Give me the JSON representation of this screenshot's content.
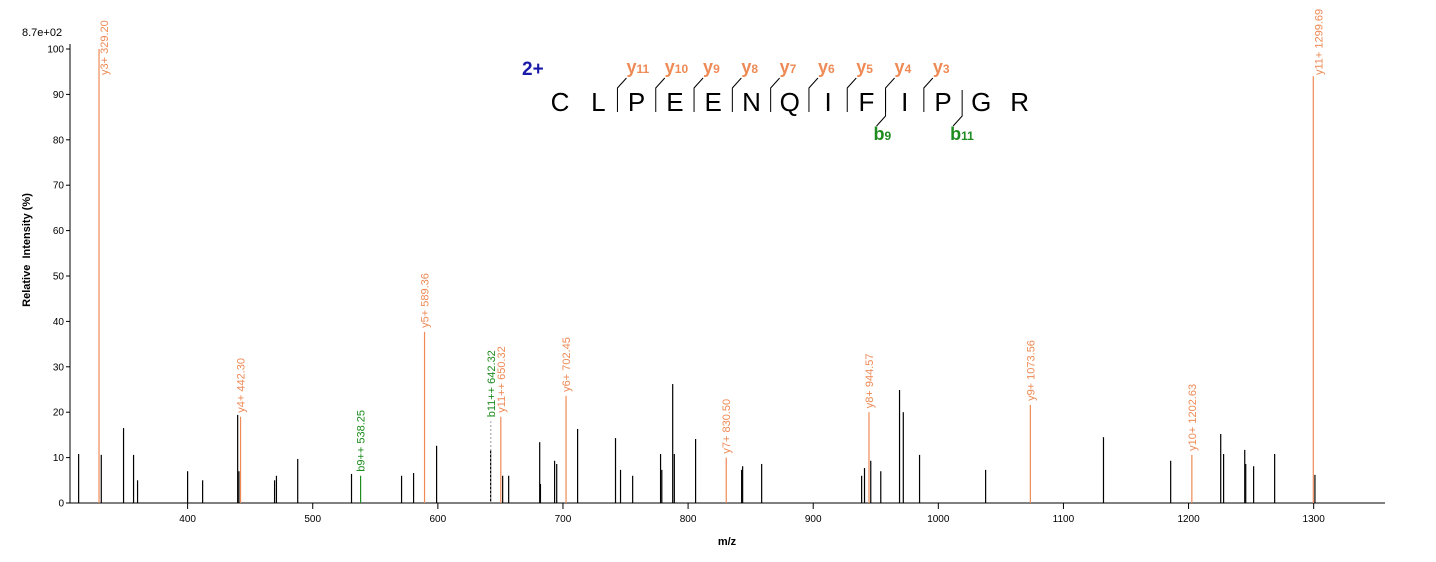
{
  "chart_data": {
    "type": "spectrum",
    "intensity_scale_label": "8.7e+02",
    "x_label": "m/z",
    "y_label": "Relative  Intensity (%)",
    "xlim": [
      306,
      1357
    ],
    "ylim": [
      0,
      100
    ],
    "xticks": [
      400,
      500,
      600,
      700,
      800,
      900,
      1000,
      1100,
      1200,
      1300
    ],
    "yticks": [
      0,
      10,
      20,
      30,
      40,
      50,
      60,
      70,
      80,
      90,
      100
    ],
    "peaks": {
      "color": "#000000",
      "mz": [
        312.9,
        331,
        348.8,
        356.8,
        360,
        400,
        412,
        440,
        441,
        469.5,
        471,
        488,
        531,
        571,
        580.6,
        599,
        642.2,
        651.8,
        656.6,
        681.4,
        682,
        693.3,
        695,
        711.7,
        742,
        746,
        755.7,
        778,
        779,
        787.7,
        789,
        806,
        842.8,
        843.6,
        858.8,
        938.7,
        941,
        946,
        954,
        969,
        972,
        985,
        1037.8,
        1132,
        1185.7,
        1225.7,
        1228,
        1244.9,
        1245.7,
        1252,
        1268.8,
        1301
      ],
      "intensity": [
        10.8,
        10.6,
        16.5,
        10.6,
        5,
        7,
        5,
        19.4,
        7,
        5,
        6,
        9.7,
        6.4,
        6,
        6.6,
        12.6,
        11.7,
        6,
        6,
        13.4,
        4.2,
        9.3,
        8.6,
        16.3,
        14.3,
        7.3,
        6,
        10.8,
        7.3,
        26.2,
        10.8,
        14.1,
        7.3,
        8.1,
        8.6,
        6,
        7.7,
        9.3,
        7,
        24.9,
        20,
        10.6,
        7.3,
        14.5,
        9.3,
        15.2,
        10.8,
        11.7,
        8.6,
        8.1,
        10.8,
        6.2
      ]
    },
    "annotations": [
      {
        "label": "y3+ 329.20",
        "mz": 329.2,
        "intensity": 100,
        "color": "#ee8a55"
      },
      {
        "label": "y4+ 442.30",
        "mz": 442.3,
        "intensity": 19,
        "color": "#ee8a55"
      },
      {
        "label": "b9++ 538.25",
        "mz": 538.25,
        "intensity": 6,
        "color": "#1e8c1e"
      },
      {
        "label": "y5+ 589.36",
        "mz": 589.36,
        "intensity": 37.7,
        "color": "#ee8a55"
      },
      {
        "label": "b11++ 642.32",
        "mz": 642.32,
        "intensity": 18,
        "color": "#1e8c1e",
        "line_style": "dashed"
      },
      {
        "label": "y11++ 650.32",
        "mz": 650.32,
        "intensity": 19,
        "color": "#ee8a55"
      },
      {
        "label": "y6+ 702.45",
        "mz": 702.45,
        "intensity": 23.6,
        "color": "#ee8a55"
      },
      {
        "label": "y7+ 830.50",
        "mz": 830.5,
        "intensity": 10,
        "color": "#ee8a55"
      },
      {
        "label": "y8+ 944.57",
        "mz": 944.57,
        "intensity": 20,
        "color": "#ee8a55"
      },
      {
        "label": "y9+ 1073.56",
        "mz": 1073.56,
        "intensity": 21.6,
        "color": "#ee8a55"
      },
      {
        "label": "y10+ 1202.63",
        "mz": 1202.63,
        "intensity": 10.6,
        "color": "#ee8a55"
      },
      {
        "label": "y11+ 1299.69",
        "mz": 1299.69,
        "intensity": 94,
        "color": "#ee8a55"
      }
    ]
  },
  "peptide": {
    "charge": "2+",
    "charge_color": "#1a1aa8",
    "residues": [
      "C",
      "L",
      "P",
      "E",
      "E",
      "N",
      "Q",
      "I",
      "F",
      "I",
      "P",
      "G",
      "R"
    ],
    "y_ion_letter": "y",
    "y_ions": [
      11,
      10,
      9,
      8,
      7,
      6,
      5,
      4,
      3
    ],
    "y_color": "#ee8a55",
    "b_ion_letter": "b",
    "b_ions": [
      9,
      11
    ],
    "b_color": "#1e8c1e"
  }
}
